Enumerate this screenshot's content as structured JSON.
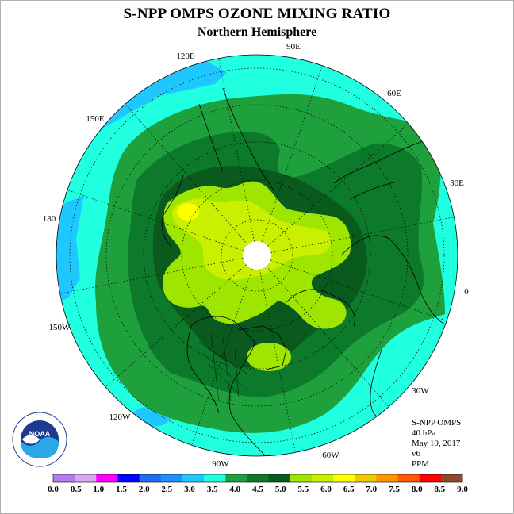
{
  "title": "S-NPP OMPS OZONE MIXING RATIO",
  "subtitle": "Northern Hemisphere",
  "longitude_labels": {
    "lon_90E": "90E",
    "lon_60E": "60E",
    "lon_30E": "30E",
    "lon_0": "0",
    "lon_30W": "30W",
    "lon_60W": "60W",
    "lon_90W": "90W",
    "lon_120W": "120W",
    "lon_150W": "150W",
    "lon_180": "180",
    "lon_150E": "150E",
    "lon_120E": "120E"
  },
  "info": {
    "instrument": "S-NPP OMPS",
    "level": "40 hPa",
    "date": "May 10, 2017",
    "version": "v6",
    "units": "PPM"
  },
  "logo_text": "NOAA",
  "colorbar": {
    "ticks": [
      "0.0",
      "0.5",
      "1.0",
      "1.5",
      "2.0",
      "2.5",
      "3.0",
      "3.5",
      "4.0",
      "4.5",
      "5.0",
      "5.5",
      "6.0",
      "6.5",
      "7.0",
      "7.5",
      "8.0",
      "8.5",
      "9.0"
    ],
    "colors": [
      "#b57cf0",
      "#d9a8f0",
      "#ff00ff",
      "#0000ff",
      "#1e6ef0",
      "#1e90ff",
      "#1ec8ff",
      "#20ffe0",
      "#1ea03c",
      "#0c7a2a",
      "#0a5a1e",
      "#9ee600",
      "#c8f000",
      "#ffff00",
      "#f0c800",
      "#ff9600",
      "#ff5a00",
      "#ff0000",
      "#8c4a2a"
    ]
  },
  "map_colors": {
    "range_3_0_3_5": "#1ec8ff",
    "range_3_5_4_0": "#20ffe0",
    "range_4_0_4_5": "#1ea03c",
    "range_4_5_5_0": "#0c7a2a",
    "range_5_0_5_5": "#0a5a1e",
    "range_5_5_6_0": "#9ee600",
    "range_6_0_6_5": "#c8f000",
    "range_6_5_7_0": "#ffff00",
    "pole_missing": "#ffffff"
  }
}
